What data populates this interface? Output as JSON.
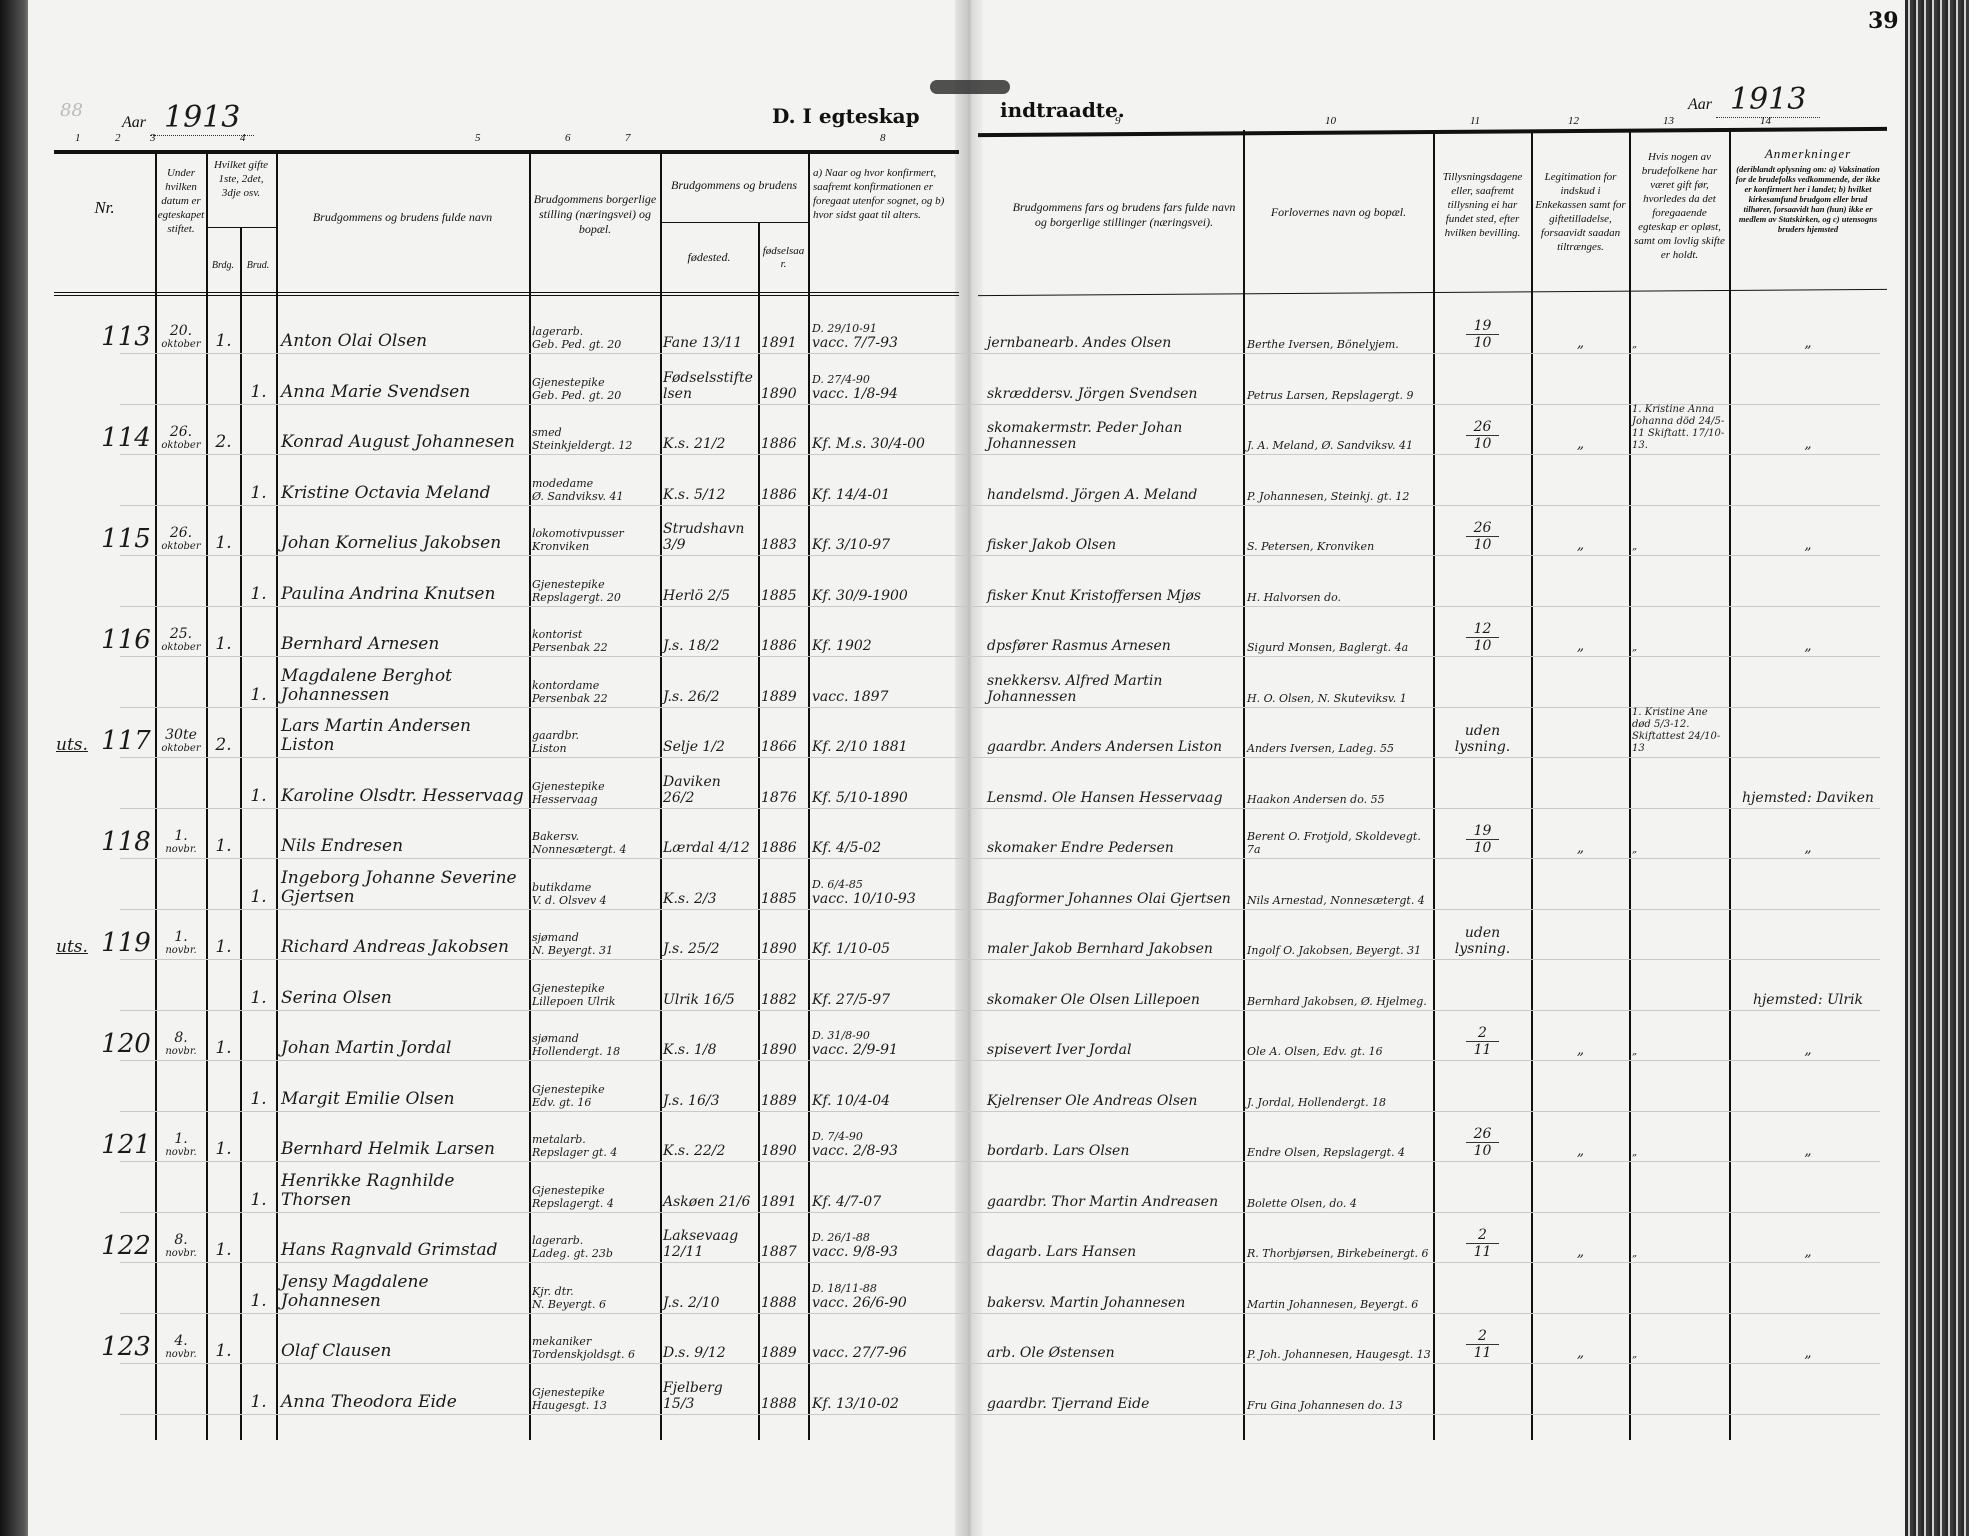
{
  "page_number": "39",
  "corner_mark": "88",
  "title_left": "D. I egteskap",
  "title_right": "indtraadte.",
  "year_label": "Aar",
  "year_left": "1913",
  "year_right": "1913",
  "column_numbers": [
    "1",
    "2",
    "3",
    "4",
    "5",
    "6",
    "7",
    "8",
    "9",
    "10",
    "11",
    "12",
    "13",
    "14"
  ],
  "headers": {
    "nr": "Nr.",
    "date": "Under hvilken datum er egteskapet stiftet.",
    "which_marriage": "Hvilket gifte 1ste, 2det, 3dje osv.",
    "brdg": "Brdg.",
    "brud": "Brud.",
    "names": "Brudgommens og brudens fulde navn",
    "occupation": "Brudgommens borgerlige stilling (næringsvei) og bopæl.",
    "birth_group": "Brudgommens og brudens",
    "birthplace": "fødested.",
    "birthyear": "fødselsaar.",
    "confirmation": "a) Naar og hvor konfirmert, saafremt konfirmationen er foregaat utenfor sognet, og b) hvor sidst gaat til alters.",
    "fathers": "Brudgommens fars og brudens fars fulde navn og borgerlige stillinger (næringsvei).",
    "witnesses": "Forlovernes navn og bopæl.",
    "banns": "Tillysningsdagene eller, saafremt tillysning ei har fundet sted, efter hvilken bevilling.",
    "legitimation": "Legitimation for indskud i Enkekassen samt for giftetilladelse, forsaavidt saadan tiltrænges.",
    "previous": "Hvis nogen av brudefolkene har været gift før, hvorledes da det foregaaende egteskap er opløst, samt om lovlig skifte er holdt.",
    "remarks_title": "Anmerkninger",
    "remarks": "(deriblandt oplysning om: a) Vaksination for de brudefolks vedkommende, der ikke er konfirmert her i landet; b) hvilket kirkesamfund brudgom eller brud tilhører, forsaavidt han (hun) ikke er medlem av Statskirken, og c) utensogns bruders hjemsted"
  },
  "rows": [
    {
      "mark": "",
      "nr": "113",
      "date": "20.",
      "month": "oktober",
      "brdg": "1.",
      "brud": "",
      "name": "Anton Olai Olsen",
      "occ1": "lagerarb.",
      "occ2": "Geb. Ped. gt. 20",
      "place": "Fane 13/11",
      "year": "1891",
      "conf1": "D. 29/10-91",
      "conf2": "vacc. 7/7-93",
      "father": "jernbanearb. Andes Olsen",
      "witness": "Berthe Iversen, Bönelyjem.",
      "banns_d": "19",
      "banns_m": "10",
      "legit": "„",
      "prev": "„",
      "remark": "„"
    },
    {
      "mark": "",
      "nr": "",
      "date": "",
      "month": "",
      "brdg": "",
      "brud": "1.",
      "name": "Anna Marie Svendsen",
      "occ1": "Gjenestepike",
      "occ2": "Geb. Ped. gt. 20",
      "place": "Fødselsstiftelsen",
      "year": "1890",
      "conf1": "D. 27/4-90",
      "conf2": "vacc. 1/8-94",
      "father": "skræddersv. Jörgen Svendsen",
      "witness": "Petrus Larsen, Repslagergt. 9",
      "banns_d": "",
      "banns_m": "",
      "legit": "",
      "prev": "",
      "remark": ""
    },
    {
      "mark": "",
      "nr": "114",
      "date": "26.",
      "month": "oktober",
      "brdg": "2.",
      "brud": "",
      "name": "Konrad August Johannesen",
      "occ1": "smed",
      "occ2": "Steinkjeldergt. 12",
      "place": "K.s. 21/2",
      "year": "1886",
      "conf1": "",
      "conf2": "Kf. M.s. 30/4-00",
      "father": "skomakermstr. Peder Johan Johannessen",
      "witness": "J. A. Meland, Ø. Sandviksv. 41",
      "banns_d": "26",
      "banns_m": "10",
      "legit": "„",
      "prev": "1. Kristine Anna Johanna död 24/5-11 Skiftatt. 17/10-13.",
      "remark": "„"
    },
    {
      "mark": "",
      "nr": "",
      "date": "",
      "month": "",
      "brdg": "",
      "brud": "1.",
      "name": "Kristine Octavia Meland",
      "occ1": "modedame",
      "occ2": "Ø. Sandviksv. 41",
      "place": "K.s. 5/12",
      "year": "1886",
      "conf1": "",
      "conf2": "Kf. 14/4-01",
      "father": "handelsmd. Jörgen A. Meland",
      "witness": "P. Johannesen, Steinkj. gt. 12",
      "banns_d": "",
      "banns_m": "",
      "legit": "",
      "prev": "",
      "remark": ""
    },
    {
      "mark": "",
      "nr": "115",
      "date": "26.",
      "month": "oktober",
      "brdg": "1.",
      "brud": "",
      "name": "Johan Kornelius Jakobsen",
      "occ1": "lokomotivpusser",
      "occ2": "Kronviken",
      "place": "Strudshavn 3/9",
      "year": "1883",
      "conf1": "",
      "conf2": "Kf. 3/10-97",
      "father": "fisker Jakob Olsen",
      "witness": "S. Petersen, Kronviken",
      "banns_d": "26",
      "banns_m": "10",
      "legit": "„",
      "prev": "„",
      "remark": "„"
    },
    {
      "mark": "",
      "nr": "",
      "date": "",
      "month": "",
      "brdg": "",
      "brud": "1.",
      "name": "Paulina Andrina Knutsen",
      "occ1": "Gjenestepike",
      "occ2": "Repslagergt. 20",
      "place": "Herlö 2/5",
      "year": "1885",
      "conf1": "",
      "conf2": "Kf. 30/9-1900",
      "father": "fisker Knut Kristoffersen Mjøs",
      "witness": "H. Halvorsen   do.",
      "banns_d": "",
      "banns_m": "",
      "legit": "",
      "prev": "",
      "remark": ""
    },
    {
      "mark": "",
      "nr": "116",
      "date": "25.",
      "month": "oktober",
      "brdg": "1.",
      "brud": "",
      "name": "Bernhard Arnesen",
      "occ1": "kontorist",
      "occ2": "Persenbak 22",
      "place": "J.s. 18/2",
      "year": "1886",
      "conf1": "",
      "conf2": "Kf. 1902",
      "father": "dpsfører Rasmus Arnesen",
      "witness": "Sigurd Monsen, Baglergt. 4a",
      "banns_d": "12",
      "banns_m": "10",
      "legit": "„",
      "prev": "„",
      "remark": "„"
    },
    {
      "mark": "",
      "nr": "",
      "date": "",
      "month": "",
      "brdg": "",
      "brud": "1.",
      "name": "Magdalene Berghot Johannessen",
      "occ1": "kontordame",
      "occ2": "Persenbak 22",
      "place": "J.s. 26/2",
      "year": "1889",
      "conf1": "",
      "conf2": "vacc. 1897",
      "father": "snekkersv. Alfred Martin Johannessen",
      "witness": "H. O. Olsen, N. Skuteviksv. 1",
      "banns_d": "",
      "banns_m": "",
      "legit": "",
      "prev": "",
      "remark": ""
    },
    {
      "mark": "uts.",
      "nr": "117",
      "date": "30te",
      "month": "oktober",
      "brdg": "2.",
      "brud": "",
      "name": "Lars Martin Andersen Liston",
      "occ1": "gaardbr.",
      "occ2": "Liston",
      "place": "Selje 1/2",
      "year": "1866",
      "conf1": "",
      "conf2": "Kf. 2/10 1881",
      "father": "gaardbr. Anders Andersen Liston",
      "witness": "Anders Iversen, Ladeg. 55",
      "banns_d": "uden",
      "banns_m": "lysning.",
      "legit": "",
      "prev": "1. Kristine Ane død 5/3-12. Skiftattest 24/10-13",
      "remark": ""
    },
    {
      "mark": "",
      "nr": "",
      "date": "",
      "month": "",
      "brdg": "",
      "brud": "1.",
      "name": "Karoline Olsdtr. Hesservaag",
      "occ1": "Gjenestepike",
      "occ2": "Hesservaag",
      "place": "Daviken 26/2",
      "year": "1876",
      "conf1": "",
      "conf2": "Kf. 5/10-1890",
      "father": "Lensmd. Ole Hansen Hesservaag",
      "witness": "Haakon Andersen   do. 55",
      "banns_d": "",
      "banns_m": "",
      "legit": "",
      "prev": "",
      "remark": "hjemsted: Daviken"
    },
    {
      "mark": "",
      "nr": "118",
      "date": "1.",
      "month": "novbr.",
      "brdg": "1.",
      "brud": "",
      "name": "Nils Endresen",
      "occ1": "Bakersv.",
      "occ2": "Nonnesætergt. 4",
      "place": "Lærdal 4/12",
      "year": "1886",
      "conf1": "",
      "conf2": "Kf. 4/5-02",
      "father": "skomaker Endre Pedersen",
      "witness": "Berent O. Frotjold, Skoldevegt. 7a",
      "banns_d": "19",
      "banns_m": "10",
      "legit": "„",
      "prev": "„",
      "remark": "„"
    },
    {
      "mark": "",
      "nr": "",
      "date": "",
      "month": "",
      "brdg": "",
      "brud": "1.",
      "name": "Ingeborg Johanne Severine Gjertsen",
      "occ1": "butikdame",
      "occ2": "V. d. Olsvev 4",
      "place": "K.s. 2/3",
      "year": "1885",
      "conf1": "D. 6/4-85",
      "conf2": "vacc. 10/10-93",
      "father": "Bagformer Johannes Olai Gjertsen",
      "witness": "Nils Arnestad, Nonnesætergt. 4",
      "banns_d": "",
      "banns_m": "",
      "legit": "",
      "prev": "",
      "remark": ""
    },
    {
      "mark": "uts.",
      "nr": "119",
      "date": "1.",
      "month": "novbr.",
      "brdg": "1.",
      "brud": "",
      "name": "Richard Andreas Jakobsen",
      "occ1": "sjømand",
      "occ2": "N. Beyergt. 31",
      "place": "J.s. 25/2",
      "year": "1890",
      "conf1": "",
      "conf2": "Kf. 1/10-05",
      "father": "maler Jakob Bernhard Jakobsen",
      "witness": "Ingolf O. Jakobsen, Beyergt. 31",
      "banns_d": "uden",
      "banns_m": "lysning.",
      "legit": "",
      "prev": "",
      "remark": ""
    },
    {
      "mark": "",
      "nr": "",
      "date": "",
      "month": "",
      "brdg": "",
      "brud": "1.",
      "name": "Serina Olsen",
      "occ1": "Gjenestepike",
      "occ2": "Lillepoen Ulrik",
      "place": "Ulrik 16/5",
      "year": "1882",
      "conf1": "",
      "conf2": "Kf. 27/5-97",
      "father": "skomaker Ole Olsen Lillepoen",
      "witness": "Bernhard Jakobsen, Ø. Hjelmeg.",
      "banns_d": "",
      "banns_m": "",
      "legit": "",
      "prev": "",
      "remark": "hjemsted: Ulrik"
    },
    {
      "mark": "",
      "nr": "120",
      "date": "8.",
      "month": "novbr.",
      "brdg": "1.",
      "brud": "",
      "name": "Johan Martin Jordal",
      "occ1": "sjømand",
      "occ2": "Hollendergt. 18",
      "place": "K.s. 1/8",
      "year": "1890",
      "conf1": "D. 31/8-90",
      "conf2": "vacc. 2/9-91",
      "father": "spisevert Iver Jordal",
      "witness": "Ole A. Olsen, Edv. gt. 16",
      "banns_d": "2",
      "banns_m": "11",
      "legit": "„",
      "prev": "„",
      "remark": "„"
    },
    {
      "mark": "",
      "nr": "",
      "date": "",
      "month": "",
      "brdg": "",
      "brud": "1.",
      "name": "Margit Emilie Olsen",
      "occ1": "Gjenestepike",
      "occ2": "Edv. gt. 16",
      "place": "J.s. 16/3",
      "year": "1889",
      "conf1": "",
      "conf2": "Kf. 10/4-04",
      "father": "Kjelrenser Ole Andreas Olsen",
      "witness": "J. Jordal, Hollendergt. 18",
      "banns_d": "",
      "banns_m": "",
      "legit": "",
      "prev": "",
      "remark": ""
    },
    {
      "mark": "",
      "nr": "121",
      "date": "1.",
      "month": "novbr.",
      "brdg": "1.",
      "brud": "",
      "name": "Bernhard Helmik Larsen",
      "occ1": "metalarb.",
      "occ2": "Repslager gt. 4",
      "place": "K.s. 22/2",
      "year": "1890",
      "conf1": "D. 7/4-90",
      "conf2": "vacc. 2/8-93",
      "father": "bordarb. Lars Olsen",
      "witness": "Endre Olsen, Repslagergt. 4",
      "banns_d": "26",
      "banns_m": "10",
      "legit": "„",
      "prev": "„",
      "remark": "„"
    },
    {
      "mark": "",
      "nr": "",
      "date": "",
      "month": "",
      "brdg": "",
      "brud": "1.",
      "name": "Henrikke Ragnhilde Thorsen",
      "occ1": "Gjenestepike",
      "occ2": "Repslagergt. 4",
      "place": "Askøen 21/6",
      "year": "1891",
      "conf1": "",
      "conf2": "Kf. 4/7-07",
      "father": "gaardbr. Thor Martin Andreasen",
      "witness": "Bolette Olsen,   do.   4",
      "banns_d": "",
      "banns_m": "",
      "legit": "",
      "prev": "",
      "remark": ""
    },
    {
      "mark": "",
      "nr": "122",
      "date": "8.",
      "month": "novbr.",
      "brdg": "1.",
      "brud": "",
      "name": "Hans Ragnvald Grimstad",
      "occ1": "lagerarb.",
      "occ2": "Ladeg. gt. 23b",
      "place": "Laksevaag 12/11",
      "year": "1887",
      "conf1": "D. 26/1-88",
      "conf2": "vacc. 9/8-93",
      "father": "dagarb. Lars Hansen",
      "witness": "R. Thorbjørsen, Birkebeinergt. 6",
      "banns_d": "2",
      "banns_m": "11",
      "legit": "„",
      "prev": "„",
      "remark": "„"
    },
    {
      "mark": "",
      "nr": "",
      "date": "",
      "month": "",
      "brdg": "",
      "brud": "1.",
      "name": "Jensy Magdalene Johannesen",
      "occ1": "Kjr. dtr.",
      "occ2": "N. Beyergt. 6",
      "place": "J.s. 2/10",
      "year": "1888",
      "conf1": "D. 18/11-88",
      "conf2": "vacc. 26/6-90",
      "father": "bakersv. Martin Johannesen",
      "witness": "Martin Johannesen, Beyergt. 6",
      "banns_d": "",
      "banns_m": "",
      "legit": "",
      "prev": "",
      "remark": ""
    },
    {
      "mark": "",
      "nr": "123",
      "date": "4.",
      "month": "novbr.",
      "brdg": "1.",
      "brud": "",
      "name": "Olaf Clausen",
      "occ1": "mekaniker",
      "occ2": "Tordenskjoldsgt. 6",
      "place": "D.s. 9/12",
      "year": "1889",
      "conf1": "",
      "conf2": "vacc. 27/7-96",
      "father": "arb. Ole Østensen",
      "witness": "P. Joh. Johannesen, Haugesgt. 13",
      "banns_d": "2",
      "banns_m": "11",
      "legit": "„",
      "prev": "„",
      "remark": "„"
    },
    {
      "mark": "",
      "nr": "",
      "date": "",
      "month": "",
      "brdg": "",
      "brud": "1.",
      "name": "Anna Theodora Eide",
      "occ1": "Gjenestepike",
      "occ2": "Haugesgt. 13",
      "place": "Fjelberg 15/3",
      "year": "1888",
      "conf1": "",
      "conf2": "Kf. 13/10-02",
      "father": "gaardbr. Tjerrand Eide",
      "witness": "Fru Gina Johannesen   do. 13",
      "banns_d": "",
      "banns_m": "",
      "legit": "",
      "prev": "",
      "remark": ""
    }
  ]
}
